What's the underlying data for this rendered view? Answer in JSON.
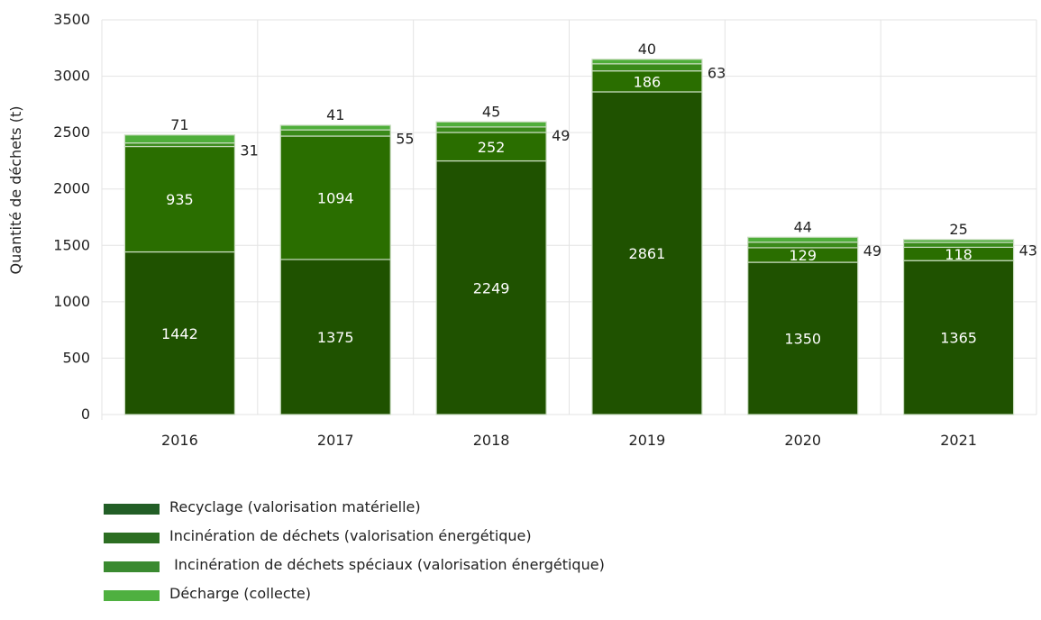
{
  "chart_data": {
    "type": "bar",
    "stacked": true,
    "title": "",
    "xlabel": "",
    "ylabel": "Quantité de déchets (t)",
    "ylim": [
      0,
      3500
    ],
    "yticks": [
      0,
      500,
      1000,
      1500,
      2000,
      2500,
      3000,
      3500
    ],
    "grid": true,
    "legend_position": "bottom-left",
    "categories": [
      "2016",
      "2017",
      "2018",
      "2019",
      "2020",
      "2021"
    ],
    "series": [
      {
        "name": "Recyclage (valorisation matérielle)",
        "color": "#1f5200",
        "values": [
          1442,
          1375,
          2249,
          2861,
          1350,
          1365
        ]
      },
      {
        "name": "Incinération de déchets (valorisation énergétique)",
        "color": "#2a6e00",
        "values": [
          935,
          1094,
          252,
          186,
          129,
          118
        ]
      },
      {
        "name": " Incinération de déchets spéciaux (valorisation énergétique)",
        "color": "#3a8a1a",
        "values": [
          31,
          55,
          49,
          63,
          49,
          43
        ]
      },
      {
        "name": "Décharge (collecte)",
        "color": "#4fae3a",
        "values": [
          71,
          41,
          45,
          40,
          44,
          25
        ]
      }
    ],
    "legend_colors": [
      "#225e26",
      "#2c6e22",
      "#3a8a30",
      "#4fb040"
    ]
  }
}
